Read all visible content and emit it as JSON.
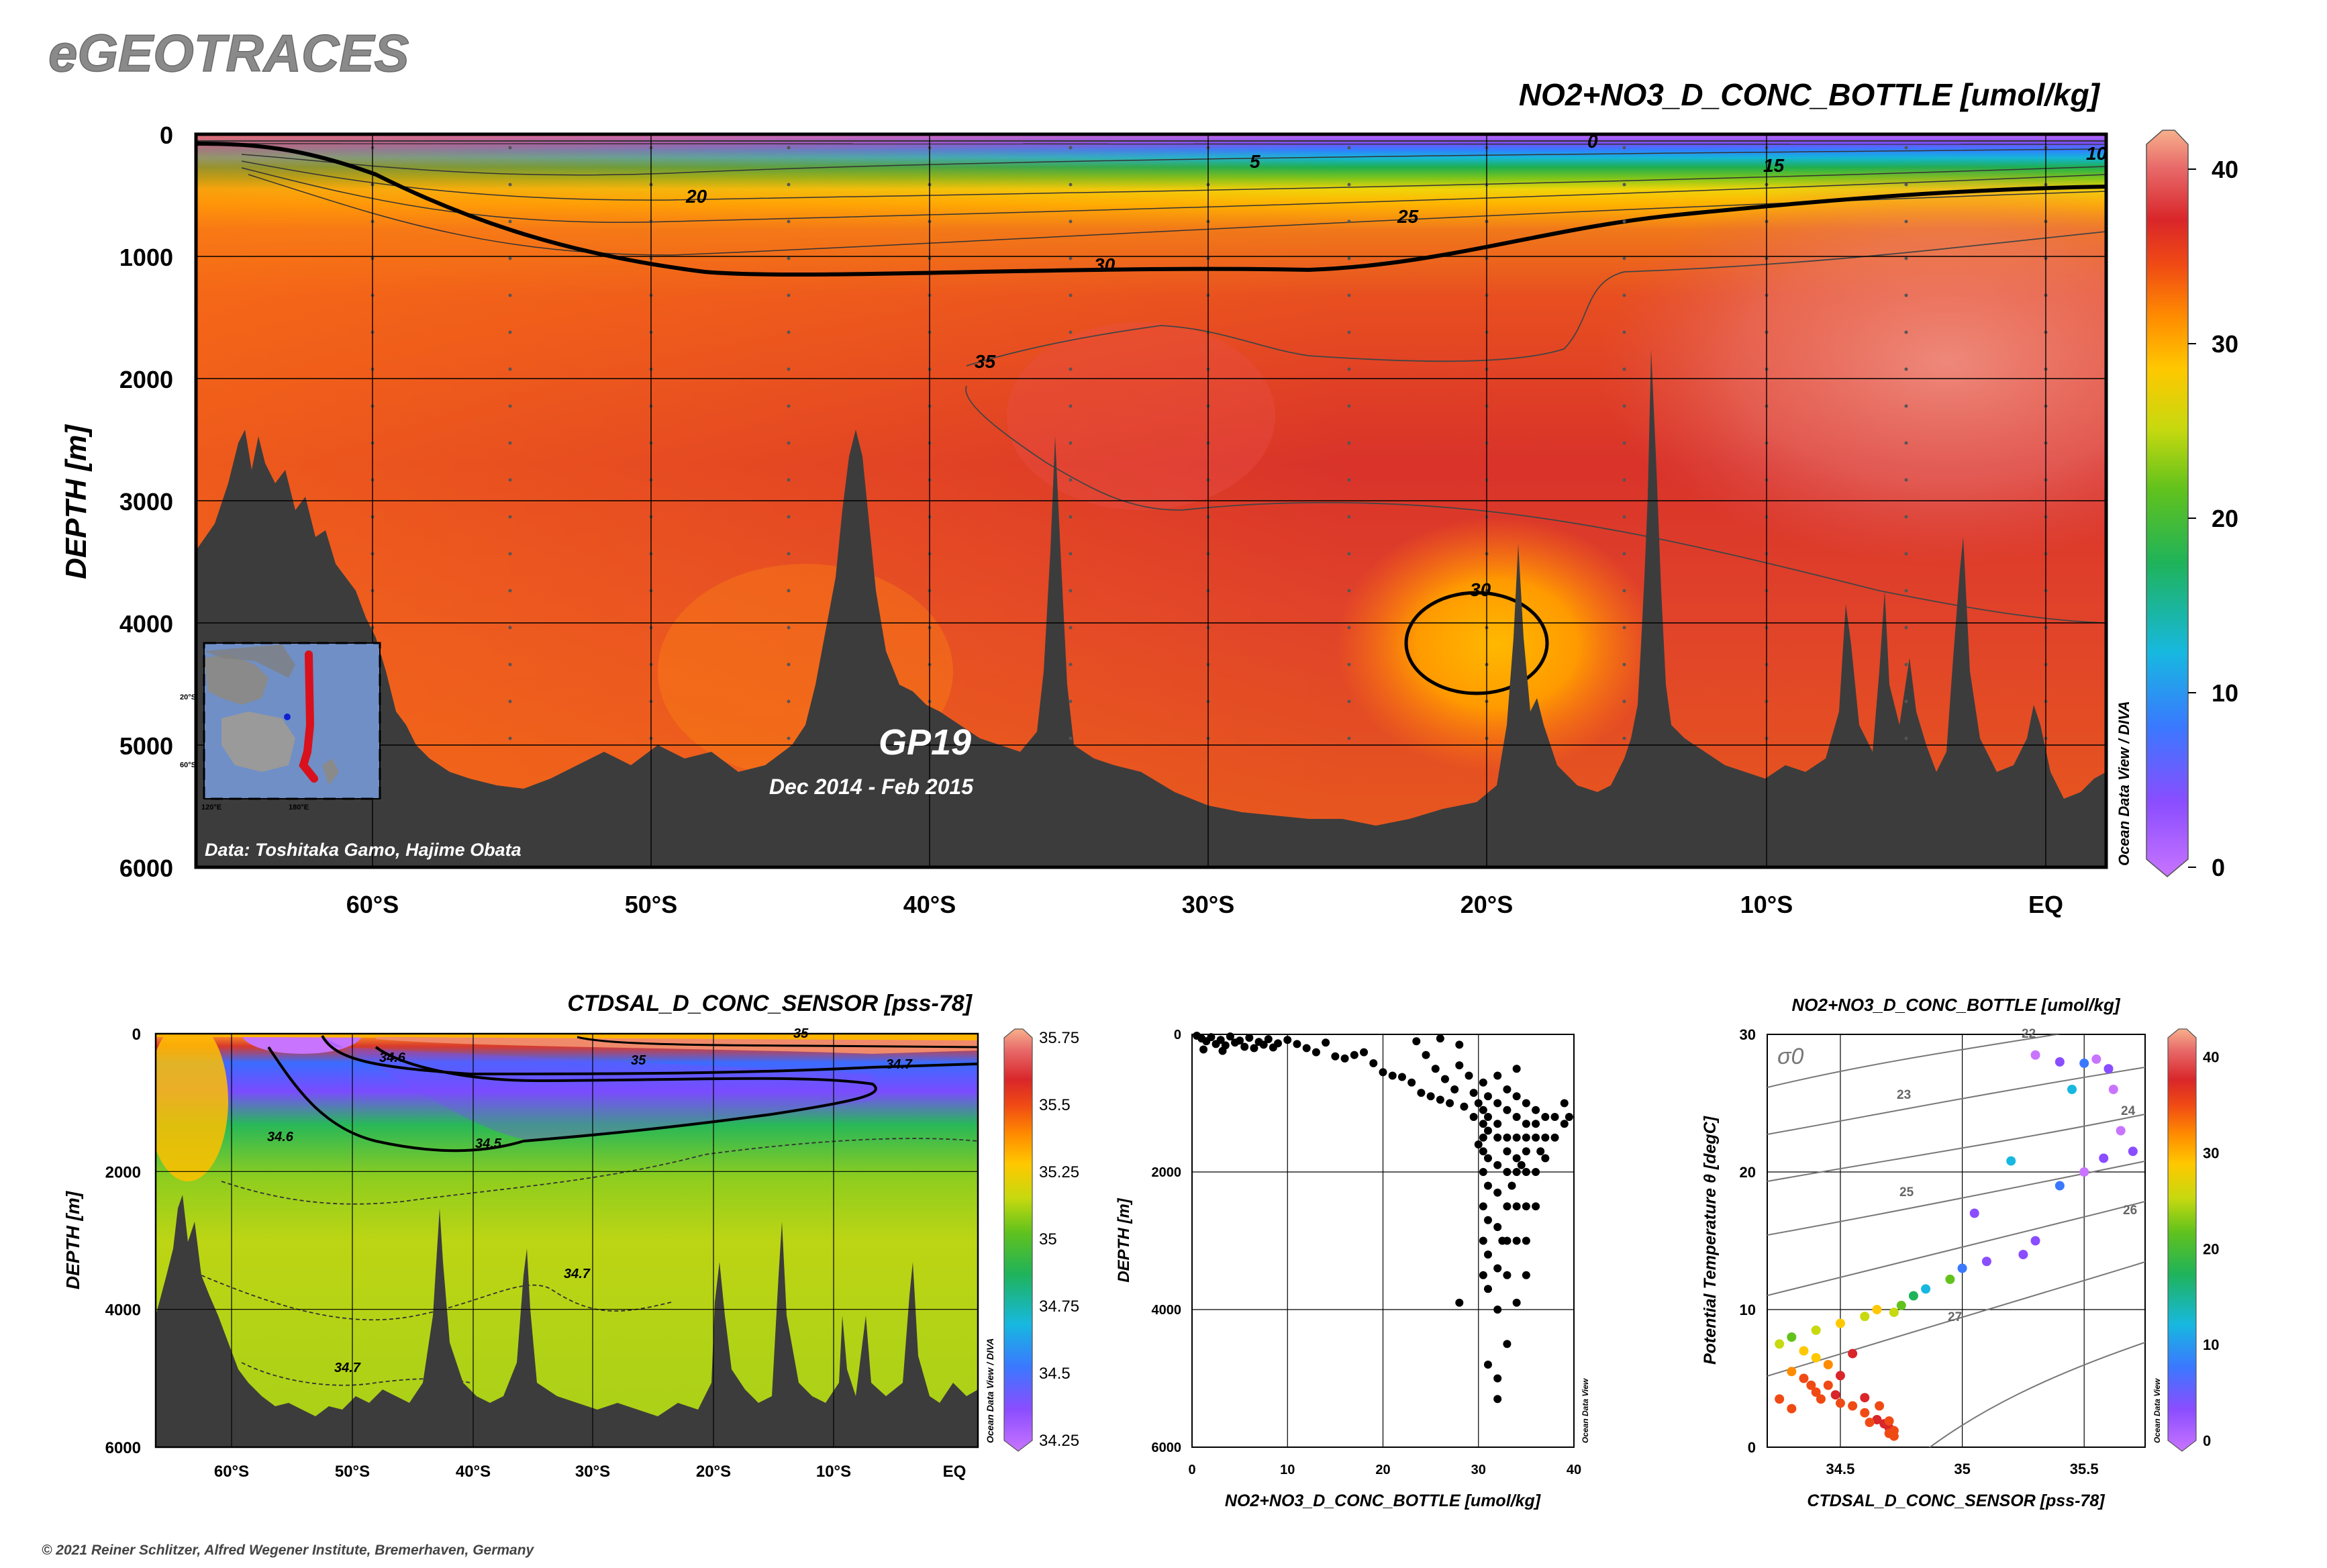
{
  "brand": "eGEOTRACES",
  "credit": "© 2021 Reiner Schlitzer, Alfred Wegener Institute, Bremerhaven, Germany",
  "colors": {
    "terrain": "#3c3c3c",
    "odv_rainbow": [
      "#c874ff",
      "#8a4dff",
      "#3a78ff",
      "#17b8e0",
      "#1fb35a",
      "#62c21c",
      "#c7d90f",
      "#ffc800",
      "#ff8c00",
      "#f04a14",
      "#d9262a",
      "#e86a6a",
      "#f7b08c"
    ]
  },
  "chart_data": [
    {
      "id": "main_section",
      "type": "heatmap",
      "title": "NO2+NO3_D_CONC_BOTTLE [umol/kg]",
      "ylabel": "DEPTH [m]",
      "ylim": [
        6000,
        0
      ],
      "y_ticks": [
        "0",
        "1000",
        "2000",
        "3000",
        "4000",
        "5000",
        "6000"
      ],
      "x_ticks": [
        "60°S",
        "50°S",
        "40°S",
        "30°S",
        "20°S",
        "10°S",
        "EQ"
      ],
      "colorbar": {
        "ticks": [
          "0",
          "10",
          "20",
          "30",
          "40"
        ],
        "range": [
          0,
          42
        ]
      },
      "contour_labels": [
        "0",
        "5",
        "10",
        "15",
        "20",
        "25",
        "30",
        "35",
        "30"
      ],
      "watermark": "Ocean Data View / DIVA",
      "cruise": "GP19",
      "period": "Dec 2014 - Feb 2015",
      "data_credit": "Data: Toshitaka Gamo, Hajime Obata",
      "inset_ticks": [
        "20°S",
        "60°S",
        "120°E",
        "180°E"
      ]
    },
    {
      "id": "salinity_section",
      "type": "heatmap",
      "title": "CTDSAL_D_CONC_SENSOR [pss-78]",
      "ylabel": "DEPTH [m]",
      "ylim": [
        6000,
        0
      ],
      "y_ticks": [
        "0",
        "2000",
        "4000",
        "6000"
      ],
      "x_ticks": [
        "60°S",
        "50°S",
        "40°S",
        "30°S",
        "20°S",
        "10°S",
        "EQ"
      ],
      "colorbar": {
        "ticks": [
          "35.75",
          "35.5",
          "35.25",
          "35",
          "34.75",
          "34.5",
          "34.25"
        ],
        "range": [
          34.2,
          35.8
        ]
      },
      "contour_labels": [
        "34.6",
        "35",
        "34.7",
        "34.5",
        "34.6",
        "34.7",
        "34.7",
        "35"
      ],
      "watermark": "Ocean Data View / DIVA"
    },
    {
      "id": "profile_scatter",
      "type": "scatter",
      "title": "",
      "xlabel": "NO2+NO3_D_CONC_BOTTLE [umol/kg]",
      "ylabel": "DEPTH [m]",
      "xlim": [
        0,
        40
      ],
      "ylim": [
        6000,
        0
      ],
      "x_ticks": [
        "0",
        "10",
        "20",
        "30",
        "40"
      ],
      "y_ticks": [
        "0",
        "2000",
        "4000",
        "6000"
      ],
      "watermark": "Ocean Data View",
      "points": [
        [
          0.5,
          20
        ],
        [
          1,
          60
        ],
        [
          1.5,
          100
        ],
        [
          2,
          40
        ],
        [
          2.5,
          140
        ],
        [
          3,
          80
        ],
        [
          3.5,
          160
        ],
        [
          4,
          30
        ],
        [
          4.5,
          120
        ],
        [
          5,
          90
        ],
        [
          5.5,
          180
        ],
        [
          6,
          50
        ],
        [
          6.5,
          200
        ],
        [
          7,
          110
        ],
        [
          7.5,
          150
        ],
        [
          8,
          70
        ],
        [
          8.5,
          190
        ],
        [
          9,
          130
        ],
        [
          1.2,
          220
        ],
        [
          3.2,
          240
        ],
        [
          10,
          80
        ],
        [
          11,
          140
        ],
        [
          12,
          200
        ],
        [
          13,
          260
        ],
        [
          14,
          120
        ],
        [
          15,
          320
        ],
        [
          16,
          350
        ],
        [
          17,
          300
        ],
        [
          18,
          260
        ],
        [
          19,
          420
        ],
        [
          20,
          550
        ],
        [
          21,
          600
        ],
        [
          22,
          620
        ],
        [
          23,
          700
        ],
        [
          24,
          850
        ],
        [
          25,
          900
        ],
        [
          26,
          950
        ],
        [
          27,
          1000
        ],
        [
          24.5,
          300
        ],
        [
          25.5,
          500
        ],
        [
          26.5,
          650
        ],
        [
          27.5,
          800
        ],
        [
          28,
          450
        ],
        [
          28.5,
          1050
        ],
        [
          29,
          600
        ],
        [
          29.5,
          850
        ],
        [
          30,
          1000
        ],
        [
          23.5,
          100
        ],
        [
          26,
          60
        ],
        [
          28,
          150
        ],
        [
          30.5,
          700
        ],
        [
          30.5,
          1100
        ],
        [
          30.5,
          1300
        ],
        [
          30.5,
          1500
        ],
        [
          30.5,
          1700
        ],
        [
          30.5,
          2000
        ],
        [
          30.5,
          2500
        ],
        [
          30.5,
          3000
        ],
        [
          30.5,
          3500
        ],
        [
          31,
          900
        ],
        [
          31,
          1200
        ],
        [
          31,
          1400
        ],
        [
          31,
          1800
        ],
        [
          31,
          2200
        ],
        [
          31,
          2700
        ],
        [
          31,
          3200
        ],
        [
          31,
          3700
        ],
        [
          31,
          4800
        ],
        [
          32,
          600
        ],
        [
          32,
          1000
        ],
        [
          32,
          1300
        ],
        [
          32,
          1500
        ],
        [
          32,
          1900
        ],
        [
          32,
          2300
        ],
        [
          32,
          2800
        ],
        [
          32,
          3400
        ],
        [
          32,
          4000
        ],
        [
          32,
          5000
        ],
        [
          32,
          5300
        ],
        [
          33,
          800
        ],
        [
          33,
          1100
        ],
        [
          33,
          1500
        ],
        [
          33,
          1700
        ],
        [
          33,
          2000
        ],
        [
          33,
          2500
        ],
        [
          33,
          3000
        ],
        [
          33,
          3500
        ],
        [
          33,
          4500
        ],
        [
          34,
          500
        ],
        [
          34,
          900
        ],
        [
          34,
          1200
        ],
        [
          34,
          1500
        ],
        [
          34,
          1800
        ],
        [
          34,
          2000
        ],
        [
          34,
          2500
        ],
        [
          34,
          3000
        ],
        [
          34,
          3900
        ],
        [
          35,
          1000
        ],
        [
          35,
          1300
        ],
        [
          35,
          1500
        ],
        [
          35,
          1700
        ],
        [
          35,
          2000
        ],
        [
          35,
          2500
        ],
        [
          35,
          3000
        ],
        [
          35,
          3500
        ],
        [
          36,
          1100
        ],
        [
          36,
          1300
        ],
        [
          36,
          1500
        ],
        [
          36,
          2000
        ],
        [
          36,
          2500
        ],
        [
          37,
          1200
        ],
        [
          37,
          1500
        ],
        [
          37,
          1800
        ],
        [
          38,
          1200
        ],
        [
          38,
          1500
        ],
        [
          39,
          1000
        ],
        [
          39,
          1300
        ],
        [
          39.5,
          1200
        ],
        [
          28,
          3900
        ],
        [
          32.5,
          3000
        ],
        [
          33.5,
          2200
        ],
        [
          34.5,
          1900
        ],
        [
          36.5,
          1700
        ],
        [
          29.5,
          1200
        ],
        [
          30,
          1600
        ]
      ]
    },
    {
      "id": "ts_diagram",
      "type": "scatter",
      "title": "NO2+NO3_D_CONC_BOTTLE [umol/kg]",
      "xlabel": "CTDSAL_D_CONC_SENSOR [pss-78]",
      "ylabel": "Potential Temperature θ [degC]",
      "xlim": [
        34.2,
        35.75
      ],
      "ylim": [
        0,
        30
      ],
      "x_ticks": [
        "34.5",
        "35",
        "35.5"
      ],
      "y_ticks": [
        "0",
        "10",
        "20",
        "30"
      ],
      "sigma_label": "σ0",
      "isopycnal_labels": [
        "22",
        "23",
        "24",
        "25",
        "26",
        "27"
      ],
      "colorbar": {
        "ticks": [
          "0",
          "10",
          "20",
          "30",
          "40"
        ],
        "range": [
          0,
          42
        ]
      },
      "watermark": "Ocean Data View",
      "points": [
        [
          35.3,
          28.5,
          1
        ],
        [
          35.4,
          28,
          2
        ],
        [
          35.55,
          28.2,
          0.5
        ],
        [
          35.6,
          27.5,
          3
        ],
        [
          35.5,
          27.9,
          8
        ],
        [
          35.62,
          26,
          1.5
        ],
        [
          35.45,
          26,
          10
        ],
        [
          35.65,
          23,
          0.5
        ],
        [
          35.7,
          21.5,
          4
        ],
        [
          35.58,
          21,
          2
        ],
        [
          35.5,
          20,
          1
        ],
        [
          35.4,
          19,
          6
        ],
        [
          35.2,
          20.8,
          12
        ],
        [
          35.05,
          17,
          3
        ],
        [
          35.3,
          15,
          2
        ],
        [
          35.25,
          14,
          4
        ],
        [
          35.1,
          13.5,
          5
        ],
        [
          35.0,
          13,
          7
        ],
        [
          34.95,
          12.2,
          16
        ],
        [
          34.85,
          11.5,
          10
        ],
        [
          34.8,
          11,
          14
        ],
        [
          34.75,
          10.3,
          18
        ],
        [
          34.72,
          9.8,
          22
        ],
        [
          34.65,
          10,
          26
        ],
        [
          34.6,
          9.5,
          20
        ],
        [
          34.5,
          9,
          24
        ],
        [
          34.4,
          8.5,
          21
        ],
        [
          34.3,
          8,
          17
        ],
        [
          34.25,
          7.5,
          20
        ],
        [
          34.35,
          7,
          24
        ],
        [
          34.4,
          6.5,
          25
        ],
        [
          34.45,
          6,
          27
        ],
        [
          34.3,
          5.5,
          29
        ],
        [
          34.35,
          5,
          30
        ],
        [
          34.38,
          4.5,
          30
        ],
        [
          34.4,
          4,
          31
        ],
        [
          34.42,
          3.5,
          31
        ],
        [
          34.5,
          3.2,
          32
        ],
        [
          34.55,
          3,
          33
        ],
        [
          34.6,
          2.5,
          33
        ],
        [
          34.65,
          2,
          34
        ],
        [
          34.68,
          1.7,
          34
        ],
        [
          34.7,
          1.4,
          34
        ],
        [
          34.72,
          1.2,
          33
        ],
        [
          34.7,
          1.0,
          32
        ],
        [
          34.72,
          0.8,
          31
        ],
        [
          34.25,
          3.5,
          32
        ],
        [
          34.3,
          2.8,
          31
        ],
        [
          34.45,
          4.5,
          33
        ],
        [
          34.5,
          5.2,
          35
        ],
        [
          34.55,
          6.8,
          34
        ],
        [
          34.48,
          3.8,
          35
        ],
        [
          34.6,
          3.6,
          34
        ],
        [
          34.66,
          3,
          33
        ],
        [
          34.62,
          1.8,
          32
        ],
        [
          34.7,
          1.9,
          31
        ]
      ]
    }
  ]
}
